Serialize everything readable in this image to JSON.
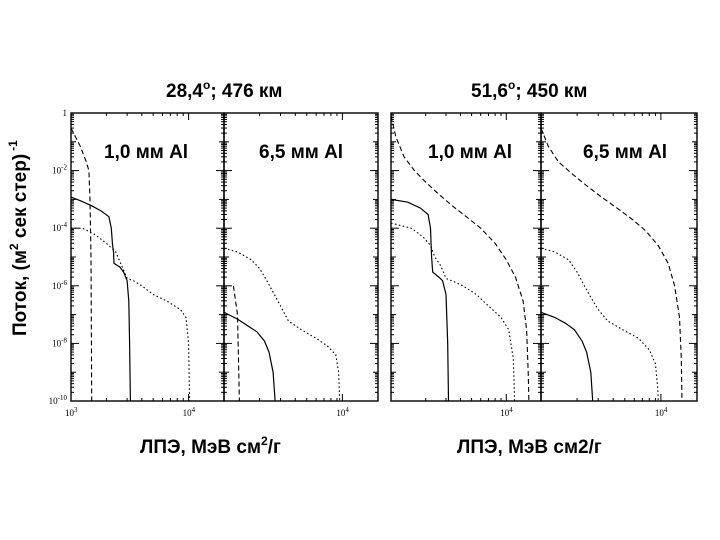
{
  "figure": {
    "ylabel_main": "Поток, (м",
    "ylabel_sup": "2",
    "ylabel_rest": " сек стер)",
    "ylabel_exp": "-1",
    "groups": [
      {
        "title_pre": "28,4",
        "title_sup": "о",
        "title_post": "; 476 км",
        "xlabel_pre": "ЛПЭ, МэВ см",
        "xlabel_sup": "2",
        "xlabel_post": "/г"
      },
      {
        "title_pre": "51,6",
        "title_sup": "о",
        "title_post": "; 450 км",
        "xlabel_pre": "ЛПЭ, МэВ см2/г",
        "xlabel_sup": "",
        "xlabel_post": ""
      }
    ]
  },
  "chart_data": [
    {
      "type": "line",
      "title": "1,0 мм Al",
      "group": "28,4°; 476 км",
      "x_scale": "log",
      "y_scale": "log",
      "xlim": [
        1000,
        20000
      ],
      "ylim": [
        1e-10,
        1
      ],
      "x_ticks": [
        "10",
        "10"
      ],
      "x_tick_exponents": [
        "3",
        "4"
      ],
      "y_tick_labels": [
        "1",
        "10-2",
        "10-4",
        "10-6",
        "10-8",
        "10-10"
      ],
      "series": [
        {
          "style": "solid",
          "points": [
            [
              1000,
              0.0012
            ],
            [
              1200,
              0.0009
            ],
            [
              1500,
              0.0006
            ],
            [
              1800,
              0.0004
            ],
            [
              2100,
              0.00025
            ],
            [
              2200,
              0.0001
            ],
            [
              2250,
              3e-05
            ],
            [
              2300,
              1.5e-05
            ],
            [
              2320,
              6e-06
            ],
            [
              2600,
              4.5e-06
            ],
            [
              2800,
              3e-06
            ],
            [
              3000,
              1.5e-06
            ],
            [
              3100,
              3e-07
            ],
            [
              3150,
              1e-08
            ],
            [
              3200,
              1e-10
            ]
          ]
        },
        {
          "style": "dashed",
          "points": [
            [
              1000,
              0.3
            ],
            [
              1200,
              0.07
            ],
            [
              1350,
              0.02
            ],
            [
              1420,
              0.01
            ],
            [
              1450,
              0.001
            ],
            [
              1480,
              1e-05
            ],
            [
              1500,
              1e-10
            ]
          ]
        },
        {
          "style": "dotted",
          "points": [
            [
              1000,
              0.0001
            ],
            [
              1250,
              0.0001
            ],
            [
              1600,
              6e-05
            ],
            [
              2000,
              3e-05
            ],
            [
              2400,
              1.5e-05
            ],
            [
              2700,
              5e-06
            ],
            [
              3000,
              1.8e-06
            ],
            [
              3400,
              1.5e-06
            ],
            [
              4000,
              1e-06
            ],
            [
              5000,
              5e-07
            ],
            [
              6500,
              3e-07
            ],
            [
              8500,
              1.5e-07
            ],
            [
              9500,
              8e-08
            ],
            [
              10000,
              1e-08
            ],
            [
              10200,
              1e-10
            ]
          ]
        }
      ]
    },
    {
      "type": "line",
      "title": "6,5 мм Al",
      "group": "28,4°; 476 км",
      "x_scale": "log",
      "y_scale": "log",
      "xlim": [
        1000,
        20000
      ],
      "ylim": [
        1e-10,
        1
      ],
      "x_ticks": [
        "10"
      ],
      "x_tick_exponents": [
        "4"
      ],
      "y_tick_labels": [],
      "series": [
        {
          "style": "solid",
          "points": [
            [
              1000,
              1.2e-07
            ],
            [
              1300,
              7e-08
            ],
            [
              1600,
              4e-08
            ],
            [
              1900,
              2.5e-08
            ],
            [
              2200,
              1.2e-08
            ],
            [
              2400,
              5e-09
            ],
            [
              2600,
              1e-09
            ],
            [
              2700,
              1e-10
            ]
          ]
        },
        {
          "style": "dashed",
          "points": [
            [
              1200,
              1e-06
            ],
            [
              1300,
              1e-07
            ],
            [
              1350,
              1e-10
            ]
          ]
        },
        {
          "style": "dotted",
          "points": [
            [
              1000,
              2e-05
            ],
            [
              1300,
              1.5e-05
            ],
            [
              1700,
              8e-06
            ],
            [
              2000,
              4e-06
            ],
            [
              2300,
              1.5e-06
            ],
            [
              2600,
              6e-07
            ],
            [
              3000,
              2e-07
            ],
            [
              3500,
              6e-08
            ],
            [
              4500,
              3e-08
            ],
            [
              6000,
              1.5e-08
            ],
            [
              7500,
              8e-09
            ],
            [
              8800,
              4e-09
            ],
            [
              9300,
              1e-09
            ],
            [
              9500,
              1e-10
            ]
          ]
        }
      ]
    },
    {
      "type": "line",
      "title": "1,0 мм Al",
      "group": "51,6°; 450 км",
      "x_scale": "log",
      "y_scale": "log",
      "xlim": [
        1000,
        20000
      ],
      "ylim": [
        1e-10,
        1
      ],
      "x_ticks": [
        "10"
      ],
      "x_tick_exponents": [
        "4"
      ],
      "y_tick_labels": [],
      "series": [
        {
          "style": "solid",
          "points": [
            [
              1000,
              0.001
            ],
            [
              1400,
              0.0008
            ],
            [
              1800,
              0.0005
            ],
            [
              2100,
              0.0003
            ],
            [
              2200,
              0.0001
            ],
            [
              2250,
              1e-05
            ],
            [
              2300,
              3e-06
            ],
            [
              2600,
              2e-06
            ],
            [
              2800,
              1.5e-06
            ],
            [
              3000,
              5e-07
            ],
            [
              3100,
              1e-08
            ],
            [
              3150,
              1e-10
            ]
          ]
        },
        {
          "style": "dashed",
          "points": [
            [
              1000,
              0.8
            ],
            [
              1100,
              0.15
            ],
            [
              1300,
              0.03
            ],
            [
              1600,
              0.01
            ],
            [
              2000,
              0.004
            ],
            [
              2600,
              0.0015
            ],
            [
              3400,
              0.0006
            ],
            [
              4500,
              0.00025
            ],
            [
              6000,
              0.0001
            ],
            [
              8000,
              3e-05
            ],
            [
              10000,
              8e-06
            ],
            [
              12000,
              2e-06
            ],
            [
              14000,
              3e-07
            ],
            [
              15000,
              3e-08
            ],
            [
              15500,
              1e-09
            ],
            [
              15700,
              1e-10
            ]
          ]
        },
        {
          "style": "dotted",
          "points": [
            [
              1000,
              0.00015
            ],
            [
              1500,
              0.0001
            ],
            [
              1900,
              5e-05
            ],
            [
              2200,
              2.5e-05
            ],
            [
              2400,
              1e-05
            ],
            [
              2700,
              5e-06
            ],
            [
              3000,
              1.8e-06
            ],
            [
              3500,
              1.4e-06
            ],
            [
              4200,
              1e-06
            ],
            [
              5500,
              5e-07
            ],
            [
              7000,
              2e-07
            ],
            [
              9000,
              8e-08
            ],
            [
              10500,
              3e-08
            ],
            [
              11500,
              3e-09
            ],
            [
              11800,
              1e-10
            ]
          ]
        }
      ]
    },
    {
      "type": "line",
      "title": "6,5 мм Al",
      "group": "51,6°; 450 км",
      "x_scale": "log",
      "y_scale": "log",
      "xlim": [
        1000,
        20000
      ],
      "ylim": [
        1e-10,
        1
      ],
      "x_ticks": [
        "10"
      ],
      "x_tick_exponents": [
        "4"
      ],
      "y_tick_labels": [],
      "series": [
        {
          "style": "solid",
          "points": [
            [
              1000,
              1.2e-07
            ],
            [
              1300,
              8e-08
            ],
            [
              1600,
              5e-08
            ],
            [
              1900,
              3e-08
            ],
            [
              2200,
              1.2e-08
            ],
            [
              2400,
              5e-09
            ],
            [
              2600,
              1e-09
            ],
            [
              2700,
              1e-10
            ]
          ]
        },
        {
          "style": "dashed",
          "points": [
            [
              1000,
              0.3
            ],
            [
              1150,
              0.07
            ],
            [
              1400,
              0.02
            ],
            [
              1800,
              0.008
            ],
            [
              2400,
              0.003
            ],
            [
              3200,
              0.0012
            ],
            [
              4300,
              0.0005
            ],
            [
              5800,
              0.0002
            ],
            [
              7500,
              8e-05
            ],
            [
              9500,
              2.5e-05
            ],
            [
              11500,
              6e-06
            ],
            [
              13000,
              1e-06
            ],
            [
              14300,
              8e-08
            ],
            [
              14800,
              3e-09
            ],
            [
              15000,
              1e-10
            ]
          ]
        },
        {
          "style": "dotted",
          "points": [
            [
              1000,
              2e-05
            ],
            [
              1300,
              1.5e-05
            ],
            [
              1700,
              8e-06
            ],
            [
              2000,
              3e-06
            ],
            [
              2300,
              1e-06
            ],
            [
              2600,
              4e-07
            ],
            [
              3000,
              1.5e-07
            ],
            [
              3600,
              6e-08
            ],
            [
              4800,
              3e-08
            ],
            [
              6500,
              1.5e-08
            ],
            [
              8000,
              6e-09
            ],
            [
              9000,
              2e-09
            ],
            [
              9400,
              3e-10
            ],
            [
              9500,
              1e-10
            ]
          ]
        }
      ]
    }
  ]
}
